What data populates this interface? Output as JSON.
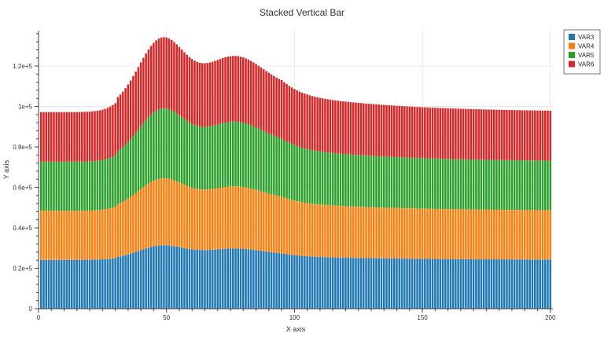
{
  "chart_data": {
    "type": "bar",
    "stacked": true,
    "title": "Stacked Vertical Bar",
    "xlabel": "X axis",
    "ylabel": "Y axis",
    "xlim": [
      0,
      201
    ],
    "ylim": [
      0,
      137500
    ],
    "x_range": [
      1,
      200
    ],
    "x_ticks": [
      0,
      50,
      100,
      150,
      200
    ],
    "x_tick_labels": [
      "0",
      "50",
      "100",
      "150",
      "200"
    ],
    "y_ticks": [
      0,
      20000,
      40000,
      60000,
      80000,
      100000,
      120000
    ],
    "y_tick_labels": [
      "0",
      "0.2e+5",
      "0.4e+5",
      "0.6e+5",
      "0.8e+5",
      "1e+5",
      "1.2e+5"
    ],
    "grid": true,
    "legend_position": "top-right",
    "series": [
      {
        "name": "VAR3",
        "color": "#1f77b4",
        "profile": {
          "base": 24200,
          "peaks": [
            {
              "x": 48,
              "height": 6300,
              "width": 9
            },
            {
              "x": 76,
              "height": 4300,
              "width": 12
            }
          ],
          "tail": {
            "height": 2000,
            "center": 95,
            "decay": 40
          }
        }
      },
      {
        "name": "VAR4",
        "color": "#ff7f0e",
        "profile": {
          "base": 24200,
          "peaks": [
            {
              "x": 48,
              "height": 7800,
              "width": 9
            },
            {
              "x": 76,
              "height": 5000,
              "width": 12
            }
          ],
          "tail": {
            "height": 2300,
            "center": 95,
            "decay": 40
          }
        }
      },
      {
        "name": "VAR5",
        "color": "#2ca02c",
        "profile": {
          "base": 24300,
          "peaks": [
            {
              "x": 48,
              "height": 9000,
              "width": 9
            },
            {
              "x": 76,
              "height": 6000,
              "width": 12
            }
          ],
          "tail": {
            "height": 2700,
            "center": 95,
            "decay": 40
          }
        }
      },
      {
        "name": "VAR6",
        "color": "#d62728",
        "profile": {
          "base": 24500,
          "peaks": [
            {
              "x": 48,
              "height": 9400,
              "width": 9
            },
            {
              "x": 76,
              "height": 6200,
              "width": 12
            }
          ],
          "tail": {
            "height": 2700,
            "center": 95,
            "decay": 40
          }
        }
      }
    ]
  }
}
